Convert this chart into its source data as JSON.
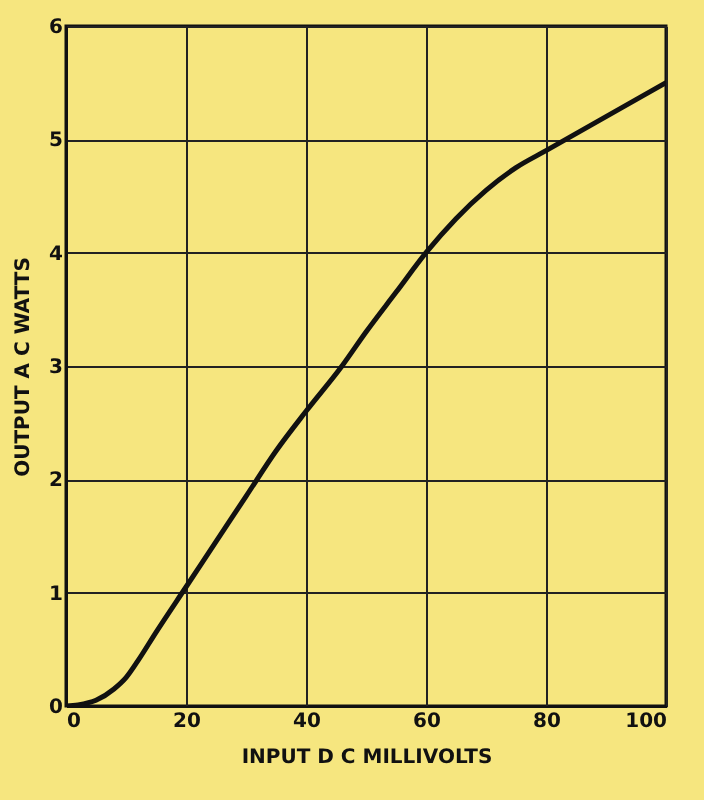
{
  "chart_data": {
    "type": "line",
    "xlabel": "INPUT D C MILLIVOLTS",
    "ylabel": "OUTPUT A C WATTS",
    "x": [
      0,
      2,
      5,
      8,
      10,
      12,
      15,
      20,
      25,
      30,
      35,
      40,
      46,
      50,
      55,
      60,
      65,
      70,
      75,
      80,
      85,
      90,
      95,
      100
    ],
    "series": [
      {
        "color": "#111111",
        "values": [
          0,
          0.01,
          0.05,
          0.15,
          0.25,
          0.4,
          0.65,
          1.05,
          1.45,
          1.85,
          2.25,
          2.6,
          3.0,
          3.3,
          3.65,
          4.0,
          4.3,
          4.55,
          4.75,
          4.9,
          5.05,
          5.2,
          5.35,
          5.5
        ]
      }
    ],
    "xlim": [
      0,
      100
    ],
    "xticks": [
      0,
      20,
      40,
      60,
      80,
      100
    ],
    "ylim": [
      0,
      6
    ],
    "yticks": [
      0,
      1,
      2,
      3,
      4,
      5,
      6
    ],
    "grid": true,
    "marker": "none",
    "line_style": "solid",
    "legend": false
  }
}
